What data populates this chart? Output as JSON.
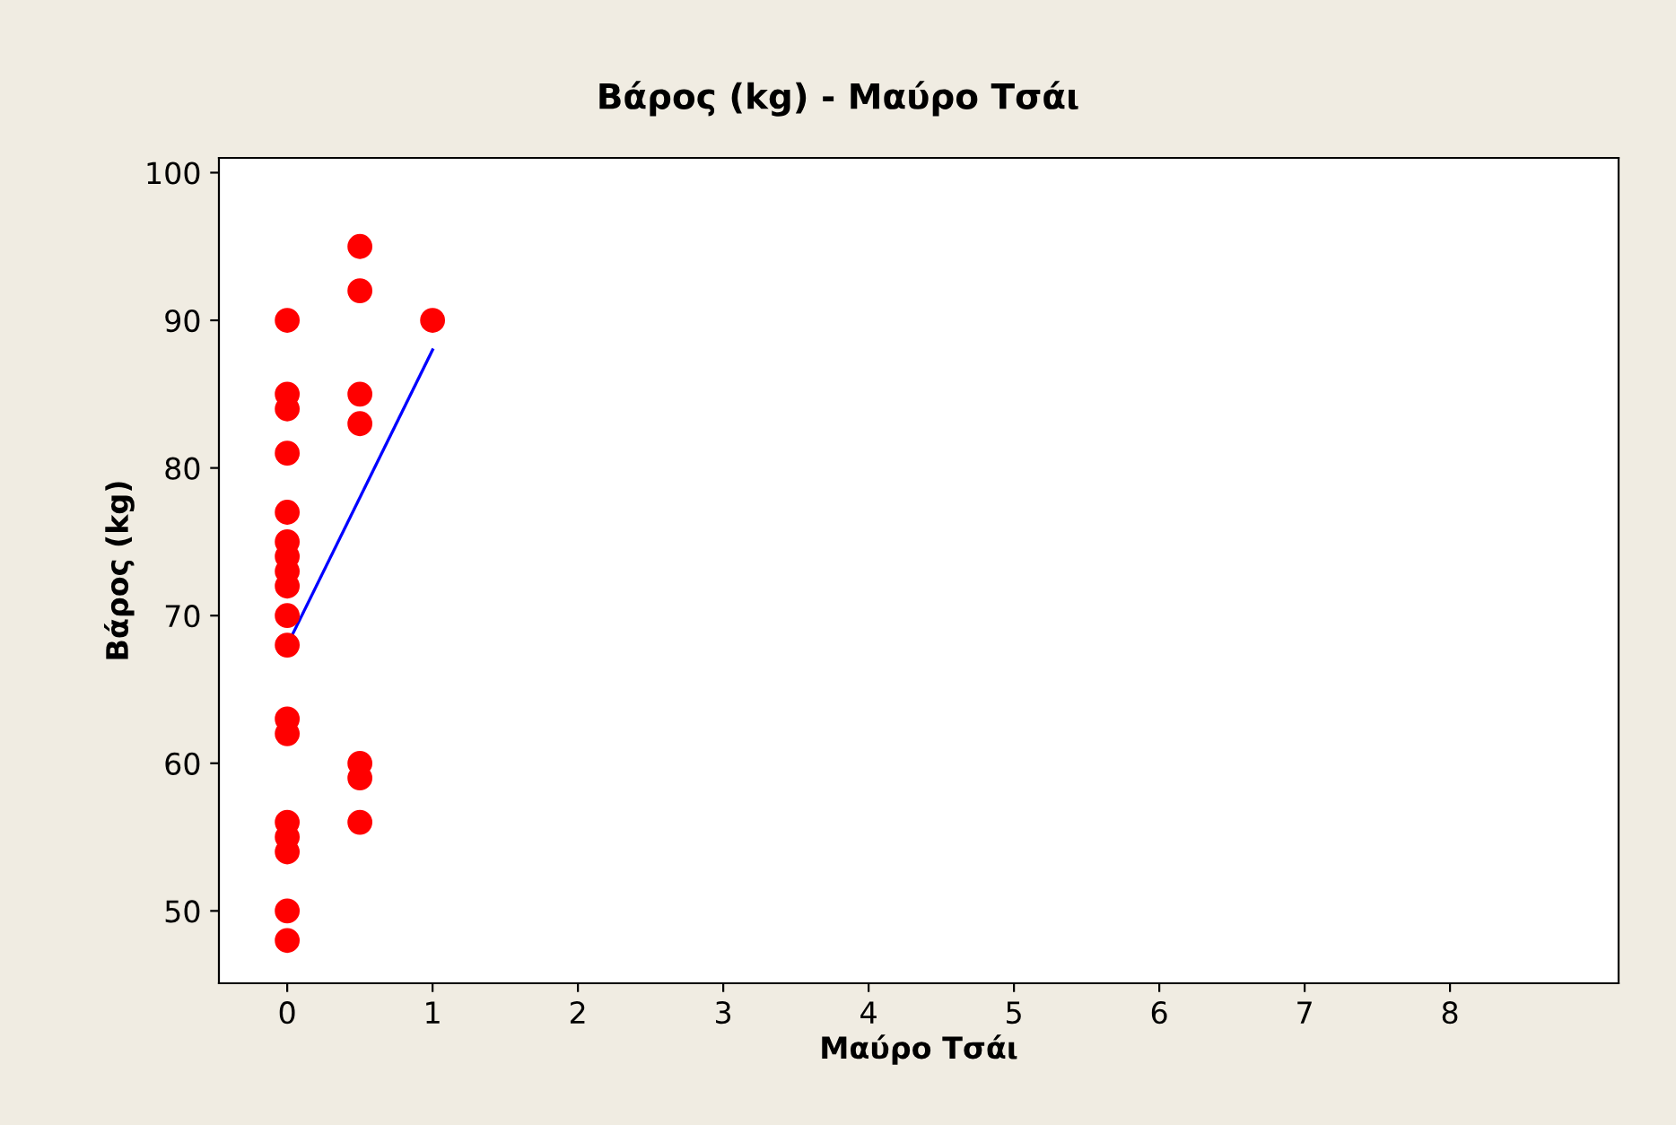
{
  "chart_data": {
    "type": "scatter",
    "title": "Βάρος (kg) - Μαύρο Τσάι",
    "xlabel": "Μαύρο Τσάι",
    "ylabel": "Βάρος (kg)",
    "xlim": [
      -0.47,
      9.16
    ],
    "ylim": [
      45.1,
      101
    ],
    "xticks": [
      0,
      1,
      2,
      3,
      4,
      5,
      6,
      7,
      8
    ],
    "yticks": [
      50,
      60,
      70,
      80,
      90,
      100
    ],
    "grid": false,
    "legend": false,
    "marker": "circle",
    "series": [
      {
        "color": "#ff0000",
        "x": [
          0,
          0,
          0,
          0,
          0,
          0,
          0,
          0,
          0,
          0,
          0,
          0,
          0,
          0,
          0,
          0,
          0,
          0,
          0.5,
          0.5,
          0.5,
          0.5,
          0.5,
          0.5,
          0.5,
          1
        ],
        "values": [
          90,
          85,
          84,
          81,
          77,
          75,
          74,
          73,
          72,
          70,
          68,
          63,
          62,
          56,
          55,
          54,
          50,
          48,
          95,
          92,
          85,
          83,
          60,
          59,
          56,
          90
        ]
      },
      {
        "type": "line",
        "color": "#0000ff",
        "x": [
          0,
          1
        ],
        "values": [
          68,
          88
        ],
        "marker": "none",
        "line_style": "solid"
      }
    ]
  }
}
